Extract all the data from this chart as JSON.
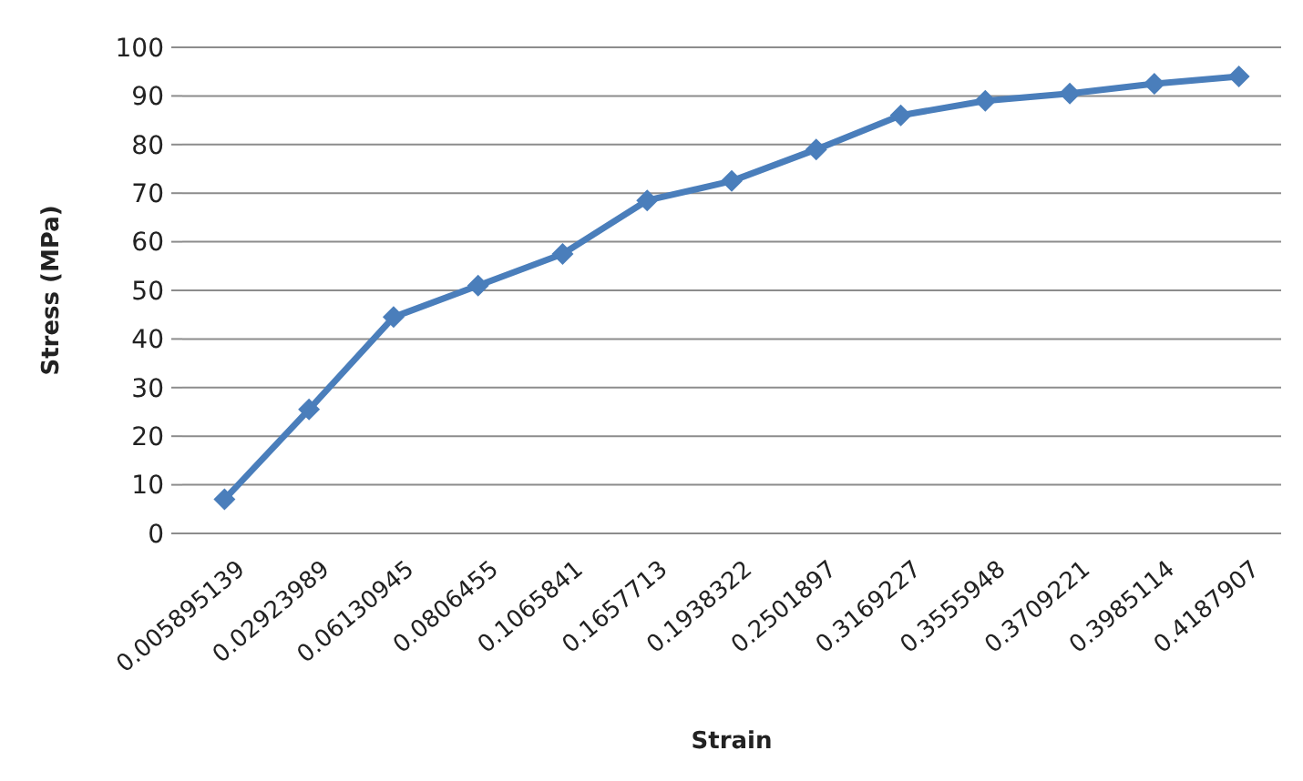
{
  "chart_data": {
    "type": "line",
    "xlabel": "Strain",
    "ylabel": "Stress (MPa)",
    "categories": [
      "0.005895139",
      "0.02923989",
      "0.06130945",
      "0.0806455",
      "0.1065841",
      "0.1657713",
      "0.1938322",
      "0.2501897",
      "0.3169227",
      "0.3555948",
      "0.3709221",
      "0.3985114",
      "0.4187907"
    ],
    "series": [
      {
        "color": "#4a7ebb",
        "values": [
          7,
          25.5,
          44.5,
          51,
          57.5,
          68.5,
          72.5,
          79,
          86,
          89,
          90.5,
          92.5,
          94
        ]
      }
    ],
    "ylim": [
      0,
      100
    ],
    "yticks": [
      0,
      10,
      20,
      30,
      40,
      50,
      60,
      70,
      80,
      90,
      100
    ],
    "grid": "y",
    "marker": "diamond"
  }
}
